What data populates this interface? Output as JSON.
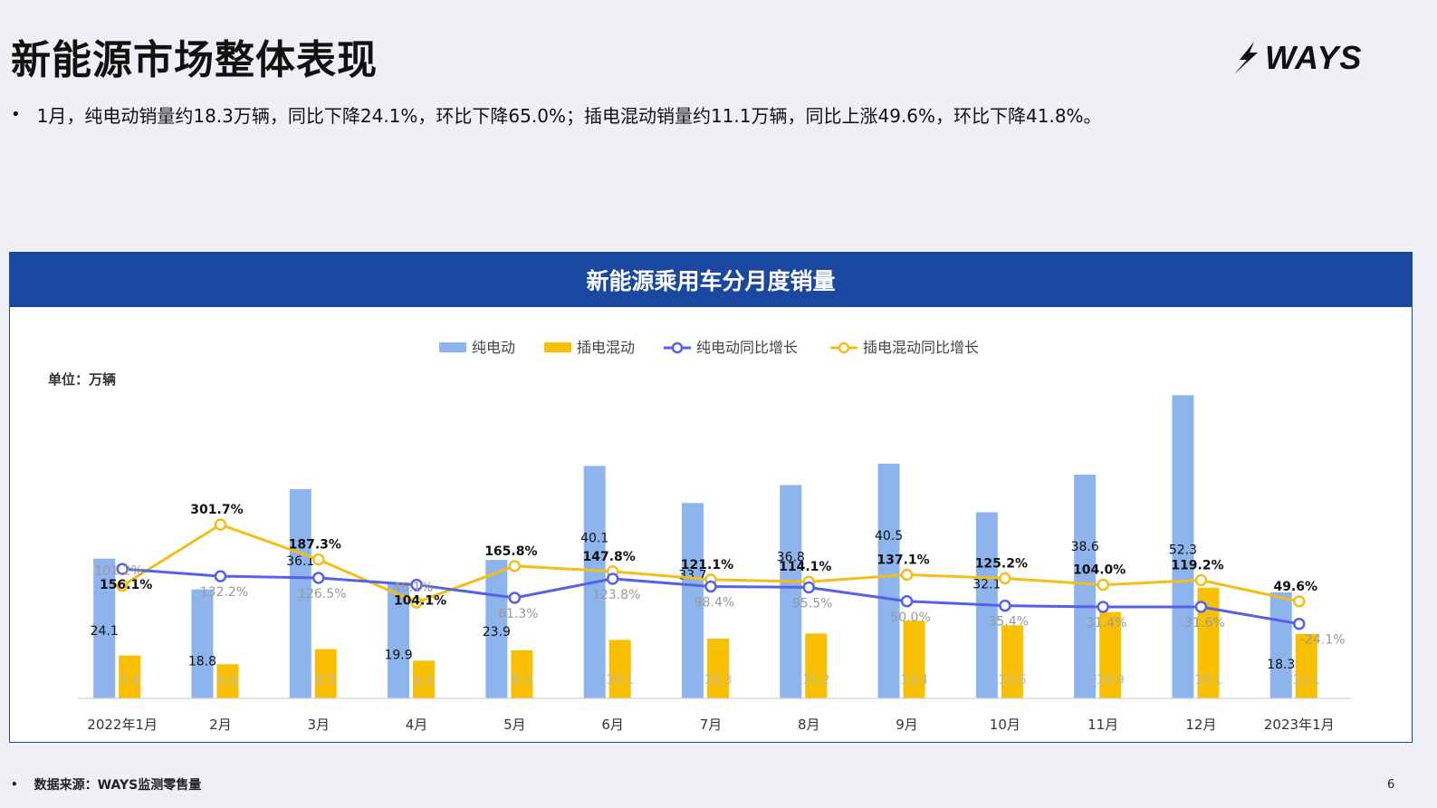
{
  "slide": {
    "title": "新能源市场整体表现",
    "summary": "1月，纯电动销量约18.3万辆，同比下降24.1%，环比下降65.0%；插电混动销量约11.1万辆，同比上涨49.6%，环比下降41.8%。",
    "bullet": "•",
    "logo_text": "WAYS",
    "source_note": "数据来源：WAYS监测零售量",
    "page_number": "6"
  },
  "chart_data": {
    "type": "bar",
    "title": "新能源乘用车分月度销量",
    "unit_label": "单位：万辆",
    "categories": [
      "2022年1月",
      "2月",
      "3月",
      "4月",
      "5月",
      "6月",
      "7月",
      "8月",
      "9月",
      "10月",
      "11月",
      "12月",
      "2023年1月"
    ],
    "series": [
      {
        "name": "纯电动",
        "kind": "bar",
        "color": "#8eb4ee",
        "values": [
          24.1,
          18.8,
          36.1,
          19.9,
          23.9,
          40.1,
          33.7,
          36.8,
          40.5,
          32.1,
          38.6,
          52.3,
          18.3
        ]
      },
      {
        "name": "插电混动",
        "kind": "bar",
        "color": "#f8c000",
        "values": [
          7.4,
          5.9,
          8.5,
          6.5,
          8.3,
          10.1,
          10.3,
          11.2,
          13.4,
          12.6,
          14.9,
          19.1,
          11.1
        ]
      },
      {
        "name": "纯电动同比增长",
        "kind": "line",
        "color": "#5561e8",
        "values": [
          156.1,
          132.2,
          126.5,
          104.1,
          61.3,
          123.8,
          98.4,
          95.5,
          50.0,
          35.4,
          31.4,
          31.6,
          -24.1
        ]
      },
      {
        "name": "插电混动同比增长",
        "kind": "line",
        "color": "#f3bd1a",
        "values": [
          101.2,
          301.7,
          187.3,
          46.1,
          165.8,
          147.8,
          121.1,
          114.1,
          137.1,
          125.2,
          104.0,
          119.2,
          49.6
        ]
      }
    ],
    "legend_position": "top-center",
    "grid": false
  }
}
